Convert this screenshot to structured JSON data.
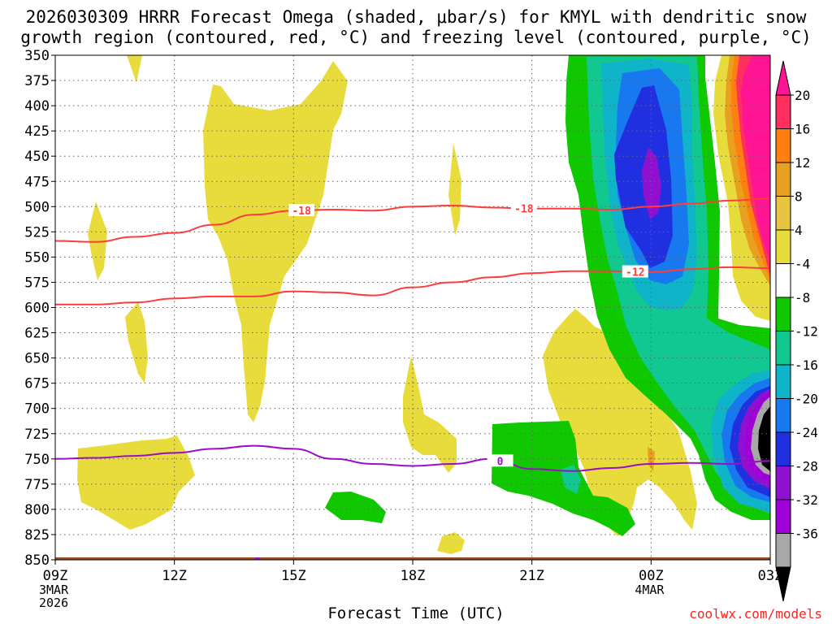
{
  "title_line1": "2026030309 HRRR Forecast Omega (shaded, μbar/s) for KMYL with dendritic snow",
  "title_line2": "growth region (contoured, red, °C) and freezing level (contoured, purple, °C)",
  "credit": "coolwx.com/models",
  "chart_data": {
    "type": "time-height cross section",
    "xlabel": "Forecast Time (UTC)",
    "x_ticks": [
      {
        "label": "09Z",
        "sub": [
          "3MAR",
          "2026"
        ],
        "hour": 0
      },
      {
        "label": "12Z",
        "sub": [],
        "hour": 3
      },
      {
        "label": "15Z",
        "sub": [],
        "hour": 6
      },
      {
        "label": "18Z",
        "sub": [],
        "hour": 9
      },
      {
        "label": "21Z",
        "sub": [],
        "hour": 12
      },
      {
        "label": "00Z",
        "sub": [
          "4MAR"
        ],
        "hour": 15
      },
      {
        "label": "03Z",
        "sub": [],
        "hour": 18
      }
    ],
    "xlim_hours": [
      0,
      18
    ],
    "y_ticks_hpa": [
      350,
      375,
      400,
      425,
      450,
      475,
      500,
      525,
      550,
      575,
      600,
      625,
      650,
      675,
      700,
      725,
      750,
      775,
      800,
      825,
      850
    ],
    "ylim_hpa": [
      350,
      850
    ],
    "grid": true,
    "colorbar": {
      "labels": [
        "20",
        "16",
        "12",
        "8",
        "4",
        "-4",
        "-8",
        "-12",
        "-16",
        "-20",
        "-24",
        "-28",
        "-32",
        "-36"
      ],
      "colors": [
        "#ff2f60",
        "#ff7f10",
        "#e8a020",
        "#e8c440",
        "#e8dc3c",
        "#ffffff",
        "#10c800",
        "#10c890",
        "#10b4c8",
        "#1878f0",
        "#2030e0",
        "#9010d0",
        "#a000d8",
        "#a8a8a8",
        "#000000"
      ],
      "max_color": "#ff1493"
    },
    "contours": [
      {
        "name": "-18",
        "color": "#ff3c3c",
        "hours": [
          0,
          1,
          2,
          3,
          4,
          5,
          6,
          7,
          8,
          9,
          10,
          11,
          12,
          13,
          14,
          15,
          16,
          17,
          18
        ],
        "values_hpa": [
          534,
          535,
          530,
          526,
          518,
          508,
          504,
          503,
          504,
          500,
          499,
          501,
          502,
          502,
          503,
          500,
          497,
          494,
          492
        ]
      },
      {
        "name": "-12",
        "color": "#ff3c3c",
        "hours": [
          0,
          1,
          2,
          3,
          4,
          5,
          6,
          7,
          8,
          9,
          10,
          11,
          12,
          13,
          14,
          15,
          16,
          17,
          18
        ],
        "values_hpa": [
          597,
          597,
          595,
          591,
          589,
          589,
          584,
          585,
          588,
          580,
          575,
          570,
          566,
          564,
          564,
          565,
          562,
          560,
          561
        ]
      },
      {
        "name": "0",
        "color": "#9a10c8",
        "hours": [
          0,
          1,
          2,
          3,
          4,
          5,
          6,
          7,
          8,
          9,
          10,
          11,
          12,
          13,
          14,
          15,
          16,
          17,
          18
        ],
        "values_hpa": [
          750,
          749,
          747,
          744,
          740,
          737,
          740,
          750,
          755,
          757,
          755,
          750,
          760,
          762,
          759,
          755,
          754,
          755,
          752
        ]
      }
    ]
  }
}
